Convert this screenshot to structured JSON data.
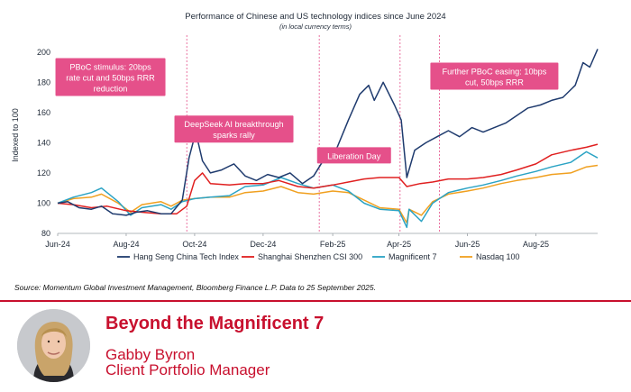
{
  "header": {
    "title": "Performance of Chinese and US technology indices since June 2024",
    "subtitle": "(in local currency terms)"
  },
  "source_note": "Source: Momentum Global Investment Management, Bloomberg Finance L.P. Data to 25 September 2025.",
  "profile": {
    "talk_title": "Beyond the Magnificent 7",
    "name": "Gabby Byron",
    "role": "Client Portfolio Manager"
  },
  "colors": {
    "hang_seng": "#1f3b6e",
    "shanghai_shenzhen": "#e02020",
    "magnificent7": "#2ba3c4",
    "nasdaq": "#f0a020",
    "annotation": "#e5508a",
    "accent": "#c8102e"
  },
  "chart_data": {
    "type": "line",
    "title": "Performance of Chinese and US technology indices since June 2024",
    "subtitle": "(in local currency terms)",
    "ylabel": "Indexed to 100",
    "xlabel": "",
    "ylim": [
      80,
      210
    ],
    "xlim": [
      "2024-06-01",
      "2025-09-25"
    ],
    "yticks": [
      80,
      100,
      120,
      140,
      160,
      180,
      200
    ],
    "xticks": [
      {
        "date": "2024-06-01",
        "label": "Jun-24"
      },
      {
        "date": "2024-08-01",
        "label": "Aug-24"
      },
      {
        "date": "2024-10-01",
        "label": "Oct-24"
      },
      {
        "date": "2024-12-01",
        "label": "Dec-24"
      },
      {
        "date": "2025-02-01",
        "label": "Feb-25"
      },
      {
        "date": "2025-04-01",
        "label": "Apr-25"
      },
      {
        "date": "2025-06-01",
        "label": "Jun-25"
      },
      {
        "date": "2025-08-01",
        "label": "Aug-25"
      }
    ],
    "grid": false,
    "legend": "bottom",
    "series": [
      {
        "name": "Hang Seng China Tech Index",
        "colorKey": "hang_seng",
        "points": [
          [
            "2024-06-01",
            100
          ],
          [
            "2024-06-10",
            101
          ],
          [
            "2024-06-20",
            97
          ],
          [
            "2024-07-01",
            96
          ],
          [
            "2024-07-10",
            98
          ],
          [
            "2024-07-20",
            93
          ],
          [
            "2024-08-01",
            92
          ],
          [
            "2024-08-10",
            94
          ],
          [
            "2024-08-20",
            95
          ],
          [
            "2024-09-01",
            93
          ],
          [
            "2024-09-10",
            93
          ],
          [
            "2024-09-20",
            102
          ],
          [
            "2024-09-26",
            130
          ],
          [
            "2024-10-02",
            147
          ],
          [
            "2024-10-08",
            128
          ],
          [
            "2024-10-15",
            120
          ],
          [
            "2024-10-25",
            122
          ],
          [
            "2024-11-05",
            126
          ],
          [
            "2024-11-15",
            118
          ],
          [
            "2024-11-25",
            115
          ],
          [
            "2024-12-05",
            119
          ],
          [
            "2024-12-15",
            117
          ],
          [
            "2024-12-25",
            120
          ],
          [
            "2025-01-05",
            113
          ],
          [
            "2025-01-15",
            118
          ],
          [
            "2025-01-25",
            130
          ],
          [
            "2025-02-05",
            137
          ],
          [
            "2025-02-15",
            155
          ],
          [
            "2025-02-25",
            172
          ],
          [
            "2025-03-05",
            178
          ],
          [
            "2025-03-10",
            168
          ],
          [
            "2025-03-18",
            180
          ],
          [
            "2025-03-28",
            165
          ],
          [
            "2025-04-03",
            155
          ],
          [
            "2025-04-08",
            117
          ],
          [
            "2025-04-15",
            135
          ],
          [
            "2025-04-25",
            140
          ],
          [
            "2025-05-05",
            144
          ],
          [
            "2025-05-15",
            148
          ],
          [
            "2025-05-25",
            144
          ],
          [
            "2025-06-05",
            150
          ],
          [
            "2025-06-15",
            147
          ],
          [
            "2025-06-25",
            150
          ],
          [
            "2025-07-05",
            153
          ],
          [
            "2025-07-15",
            158
          ],
          [
            "2025-07-25",
            163
          ],
          [
            "2025-08-05",
            165
          ],
          [
            "2025-08-15",
            168
          ],
          [
            "2025-08-25",
            170
          ],
          [
            "2025-09-05",
            178
          ],
          [
            "2025-09-12",
            193
          ],
          [
            "2025-09-18",
            190
          ],
          [
            "2025-09-25",
            202
          ]
        ]
      },
      {
        "name": "Shanghai Shenzhen CSI 300",
        "colorKey": "shanghai_shenzhen",
        "points": [
          [
            "2024-06-01",
            100
          ],
          [
            "2024-06-15",
            99
          ],
          [
            "2024-07-01",
            97
          ],
          [
            "2024-07-15",
            98
          ],
          [
            "2024-08-01",
            95
          ],
          [
            "2024-08-15",
            94
          ],
          [
            "2024-09-01",
            93
          ],
          [
            "2024-09-15",
            93
          ],
          [
            "2024-09-24",
            98
          ],
          [
            "2024-10-01",
            115
          ],
          [
            "2024-10-08",
            120
          ],
          [
            "2024-10-15",
            113
          ],
          [
            "2024-11-01",
            112
          ],
          [
            "2024-11-15",
            113
          ],
          [
            "2024-12-01",
            113
          ],
          [
            "2024-12-15",
            115
          ],
          [
            "2025-01-01",
            111
          ],
          [
            "2025-01-15",
            110
          ],
          [
            "2025-02-01",
            112
          ],
          [
            "2025-02-15",
            114
          ],
          [
            "2025-03-01",
            116
          ],
          [
            "2025-03-15",
            117
          ],
          [
            "2025-04-01",
            117
          ],
          [
            "2025-04-08",
            111
          ],
          [
            "2025-04-20",
            113
          ],
          [
            "2025-05-01",
            114
          ],
          [
            "2025-05-15",
            116
          ],
          [
            "2025-06-01",
            116
          ],
          [
            "2025-06-15",
            117
          ],
          [
            "2025-07-01",
            119
          ],
          [
            "2025-07-15",
            122
          ],
          [
            "2025-08-01",
            126
          ],
          [
            "2025-08-15",
            132
          ],
          [
            "2025-09-01",
            135
          ],
          [
            "2025-09-15",
            137
          ],
          [
            "2025-09-25",
            139
          ]
        ]
      },
      {
        "name": "Magnificent 7",
        "colorKey": "magnificent7",
        "points": [
          [
            "2024-06-01",
            100
          ],
          [
            "2024-06-15",
            104
          ],
          [
            "2024-07-01",
            107
          ],
          [
            "2024-07-10",
            110
          ],
          [
            "2024-07-25",
            101
          ],
          [
            "2024-08-05",
            92
          ],
          [
            "2024-08-15",
            97
          ],
          [
            "2024-09-01",
            99
          ],
          [
            "2024-09-10",
            96
          ],
          [
            "2024-09-20",
            101
          ],
          [
            "2024-10-01",
            103
          ],
          [
            "2024-10-15",
            104
          ],
          [
            "2024-11-01",
            105
          ],
          [
            "2024-11-15",
            111
          ],
          [
            "2024-12-01",
            112
          ],
          [
            "2024-12-17",
            117
          ],
          [
            "2025-01-01",
            113
          ],
          [
            "2025-01-15",
            110
          ],
          [
            "2025-02-01",
            112
          ],
          [
            "2025-02-15",
            108
          ],
          [
            "2025-03-01",
            100
          ],
          [
            "2025-03-15",
            96
          ],
          [
            "2025-04-01",
            95
          ],
          [
            "2025-04-08",
            84
          ],
          [
            "2025-04-10",
            96
          ],
          [
            "2025-04-21",
            88
          ],
          [
            "2025-05-01",
            100
          ],
          [
            "2025-05-15",
            107
          ],
          [
            "2025-06-01",
            110
          ],
          [
            "2025-06-15",
            112
          ],
          [
            "2025-07-01",
            115
          ],
          [
            "2025-07-15",
            118
          ],
          [
            "2025-08-01",
            121
          ],
          [
            "2025-08-15",
            124
          ],
          [
            "2025-09-01",
            127
          ],
          [
            "2025-09-15",
            134
          ],
          [
            "2025-09-25",
            130
          ]
        ]
      },
      {
        "name": "Nasdaq 100",
        "colorKey": "nasdaq",
        "points": [
          [
            "2024-06-01",
            100
          ],
          [
            "2024-06-15",
            103
          ],
          [
            "2024-07-01",
            104
          ],
          [
            "2024-07-10",
            106
          ],
          [
            "2024-07-25",
            100
          ],
          [
            "2024-08-05",
            94
          ],
          [
            "2024-08-15",
            99
          ],
          [
            "2024-09-01",
            101
          ],
          [
            "2024-09-10",
            98
          ],
          [
            "2024-09-20",
            102
          ],
          [
            "2024-10-01",
            103
          ],
          [
            "2024-10-15",
            104
          ],
          [
            "2024-11-01",
            104
          ],
          [
            "2024-11-15",
            107
          ],
          [
            "2024-12-01",
            108
          ],
          [
            "2024-12-17",
            111
          ],
          [
            "2025-01-01",
            107
          ],
          [
            "2025-01-15",
            106
          ],
          [
            "2025-02-01",
            108
          ],
          [
            "2025-02-15",
            107
          ],
          [
            "2025-03-01",
            102
          ],
          [
            "2025-03-15",
            97
          ],
          [
            "2025-04-01",
            96
          ],
          [
            "2025-04-08",
            87
          ],
          [
            "2025-04-10",
            96
          ],
          [
            "2025-04-21",
            92
          ],
          [
            "2025-05-01",
            101
          ],
          [
            "2025-05-15",
            106
          ],
          [
            "2025-06-01",
            108
          ],
          [
            "2025-06-15",
            110
          ],
          [
            "2025-07-01",
            113
          ],
          [
            "2025-07-15",
            115
          ],
          [
            "2025-08-01",
            117
          ],
          [
            "2025-08-15",
            119
          ],
          [
            "2025-09-01",
            120
          ],
          [
            "2025-09-15",
            124
          ],
          [
            "2025-09-25",
            125
          ]
        ]
      }
    ],
    "annotations": [
      {
        "date": "2024-09-24",
        "lines": [
          "PBoC stimulus: 20bps",
          "rate cut and 50bps RRR",
          "reduction"
        ],
        "anchor_date": "2024-07-18",
        "level": 196
      },
      {
        "date": "2025-01-20",
        "lines": [
          "DeepSeek AI breakthrough",
          "sparks rally"
        ],
        "anchor_date": "2024-11-05",
        "level": 158
      },
      {
        "date": "2025-04-02",
        "lines": [
          "Liberation Day"
        ],
        "anchor_date": "2025-02-20",
        "level": 137
      },
      {
        "date": "2025-05-07",
        "lines": [
          "Further PBoC easing: 10bps",
          "cut, 50bps RRR"
        ],
        "anchor_date": "2025-06-25",
        "level": 193
      }
    ]
  }
}
